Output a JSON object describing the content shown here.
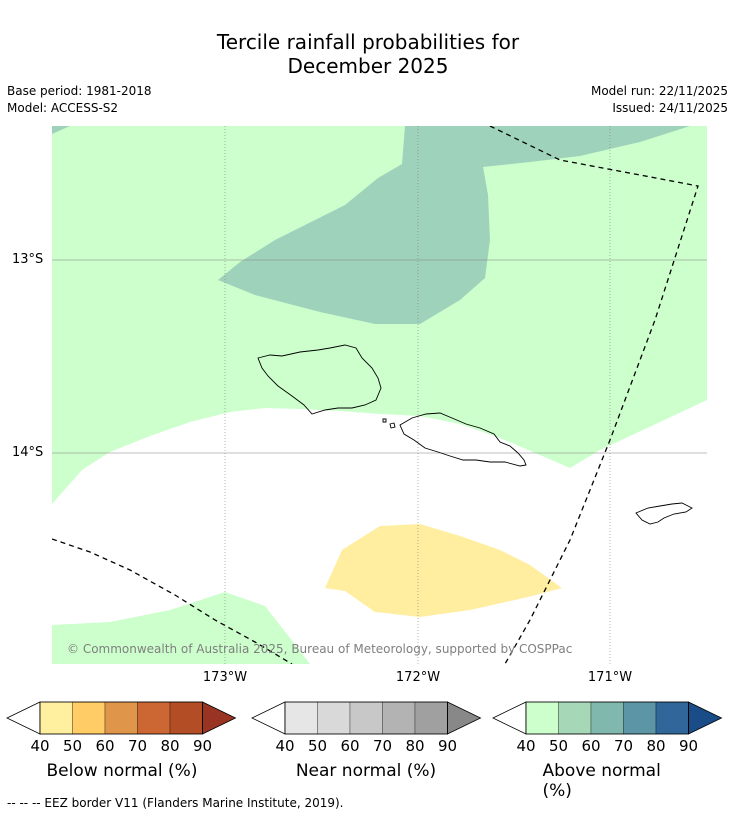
{
  "title": {
    "line1": "Tercile rainfall probabilities for",
    "line2": "December 2025"
  },
  "meta": {
    "base_period": "Base period: 1981-2018",
    "model": "Model: ACCESS-S2",
    "model_run": "Model run: 22/11/2025",
    "issued": "Issued: 24/11/2025"
  },
  "map": {
    "lat_labels": [
      "13°S",
      "14°S"
    ],
    "lon_labels": [
      "173°W",
      "172°W",
      "171°W"
    ],
    "copyright": "© Commonwealth of Australia 2025, Bureau of Meteorology, supported by COSPPac",
    "colors": {
      "above_40": "#ccffcc",
      "above_60": "#9fd2bb",
      "below_50": "#ffeea0"
    }
  },
  "colorbars": [
    {
      "title": "Below normal (%)",
      "ticks": [
        "40",
        "50",
        "60",
        "70",
        "80",
        "90"
      ],
      "colors": [
        "#fff0a0",
        "#ffcc66",
        "#e0964a",
        "#cc6633",
        "#b34d26",
        "#993322"
      ]
    },
    {
      "title": "Near normal (%)",
      "ticks": [
        "40",
        "50",
        "60",
        "70",
        "80",
        "90"
      ],
      "colors": [
        "#e6e6e6",
        "#d9d9d9",
        "#c8c8c8",
        "#b3b3b3",
        "#a0a0a0",
        "#888888"
      ]
    },
    {
      "title": "Above normal (%)",
      "ticks": [
        "40",
        "50",
        "60",
        "70",
        "80",
        "90"
      ],
      "colors": [
        "#ccffcc",
        "#a6d8b8",
        "#80b8ad",
        "#5c96a6",
        "#306699",
        "#1a4d88"
      ]
    }
  ],
  "footer": {
    "eez": "--  --  -- EEZ border V11 (Flanders Marine Institute, 2019)."
  }
}
